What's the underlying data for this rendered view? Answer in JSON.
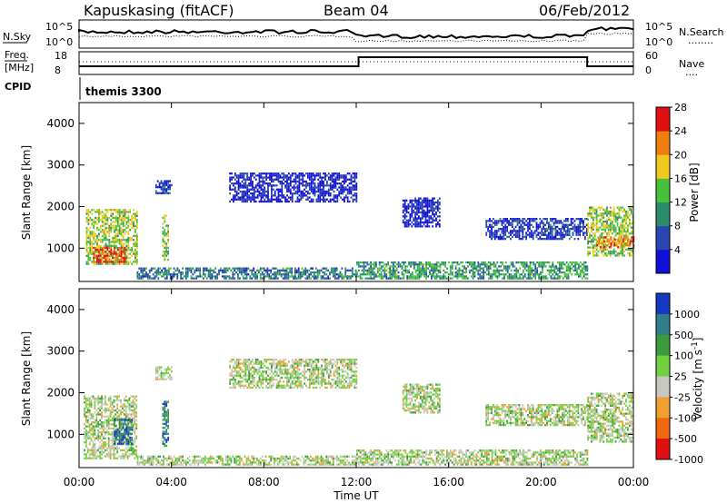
{
  "header": {
    "station": "Kapuskasing (fitACF)",
    "beam": "Beam 04",
    "date": "06/Feb/2012"
  },
  "panels": {
    "noise": {
      "left_label": "N.Sky",
      "left_ticks": [
        "10^5",
        "10^0"
      ],
      "right_ticks": [
        "10^5",
        "10^0"
      ],
      "right_label": "N.Search",
      "right_line_key": "........"
    },
    "freq": {
      "left_label_1": "Freq.",
      "left_label_2": "[MHz]",
      "left_ticks": [
        "18",
        "8"
      ],
      "right_ticks": [
        "60",
        "0"
      ],
      "right_label": "Nave",
      "right_line_key": "...."
    },
    "cpid": {
      "label": "CPID",
      "program": "themis 3300"
    }
  },
  "chart_data": [
    {
      "type": "heatmap",
      "title": "",
      "xlabel": "",
      "ylabel": "Slant Range [km]",
      "yticks": [
        "1000",
        "2000",
        "3000",
        "4000"
      ],
      "ylim": [
        200,
        4500
      ],
      "xlim": [
        "00:00",
        "24:00"
      ],
      "colorbar": {
        "label": "Power [dB]",
        "ticks": [
          "4",
          "8",
          "12",
          "16",
          "20",
          "24",
          "28"
        ],
        "colors": [
          "#1010d8",
          "#2845b0",
          "#2b8c6b",
          "#45c23a",
          "#f0c820",
          "#f07d10",
          "#e01010"
        ]
      },
      "echo_regions": [
        {
          "t0": 0.3,
          "t1": 2.5,
          "r0": 600,
          "r1": 1900,
          "level": 0.55
        },
        {
          "t0": 0.6,
          "t1": 2.0,
          "r0": 650,
          "r1": 1000,
          "level": 0.85
        },
        {
          "t0": 3.6,
          "t1": 3.9,
          "r0": 700,
          "r1": 1800,
          "level": 0.5
        },
        {
          "t0": 3.3,
          "t1": 4.0,
          "r0": 2300,
          "r1": 2600,
          "level": 0.15
        },
        {
          "t0": 6.5,
          "t1": 12.0,
          "r0": 2100,
          "r1": 2800,
          "level": 0.1
        },
        {
          "t0": 14.0,
          "t1": 15.6,
          "r0": 1500,
          "r1": 2200,
          "level": 0.1
        },
        {
          "t0": 17.6,
          "t1": 22.0,
          "r0": 1200,
          "r1": 1700,
          "level": 0.15
        },
        {
          "t0": 22.0,
          "t1": 24.0,
          "r0": 800,
          "r1": 2000,
          "level": 0.55
        },
        {
          "t0": 22.4,
          "t1": 24.0,
          "r0": 1000,
          "r1": 1250,
          "level": 0.8
        },
        {
          "t0": 12.0,
          "t1": 22.0,
          "r0": 250,
          "r1": 650,
          "level": 0.4
        },
        {
          "t0": 2.5,
          "t1": 12.0,
          "r0": 250,
          "r1": 500,
          "level": 0.3
        }
      ]
    },
    {
      "type": "heatmap",
      "title": "",
      "xlabel": "Time UT",
      "ylabel": "Slant Range [km]",
      "yticks": [
        "1000",
        "2000",
        "3000",
        "4000"
      ],
      "xticks": [
        "00:00",
        "04:00",
        "08:00",
        "12:00",
        "16:00",
        "20:00",
        "00:00"
      ],
      "ylim": [
        200,
        4500
      ],
      "xlim": [
        "00:00",
        "24:00"
      ],
      "colorbar": {
        "label": "Velocity [m s^-1]",
        "ticks": [
          "1000",
          "500",
          "100",
          "25",
          "-25",
          "-100",
          "-500",
          "-1000"
        ],
        "colors": [
          "#1538c0",
          "#2f7d8a",
          "#3d9a3d",
          "#70d040",
          "#c8c8c0",
          "#f0a030",
          "#f06810",
          "#e01010"
        ]
      },
      "echo_regions": [
        {
          "t0": 0.2,
          "t1": 2.5,
          "r0": 400,
          "r1": 1900,
          "level": 0.5
        },
        {
          "t0": 1.5,
          "t1": 2.3,
          "r0": 750,
          "r1": 1350,
          "level": 0.82
        },
        {
          "t0": 3.6,
          "t1": 3.9,
          "r0": 700,
          "r1": 1800,
          "level": 0.8
        },
        {
          "t0": 3.3,
          "t1": 4.0,
          "r0": 2300,
          "r1": 2600,
          "level": 0.5
        },
        {
          "t0": 6.5,
          "t1": 12.0,
          "r0": 2100,
          "r1": 2800,
          "level": 0.5
        },
        {
          "t0": 14.0,
          "t1": 15.6,
          "r0": 1500,
          "r1": 2200,
          "level": 0.5
        },
        {
          "t0": 17.6,
          "t1": 22.0,
          "r0": 1200,
          "r1": 1700,
          "level": 0.5
        },
        {
          "t0": 22.0,
          "t1": 24.0,
          "r0": 800,
          "r1": 2000,
          "level": 0.5
        },
        {
          "t0": 12.0,
          "t1": 22.0,
          "r0": 250,
          "r1": 600,
          "level": 0.5
        },
        {
          "t0": 2.5,
          "t1": 12.0,
          "r0": 250,
          "r1": 450,
          "level": 0.5
        }
      ]
    }
  ]
}
